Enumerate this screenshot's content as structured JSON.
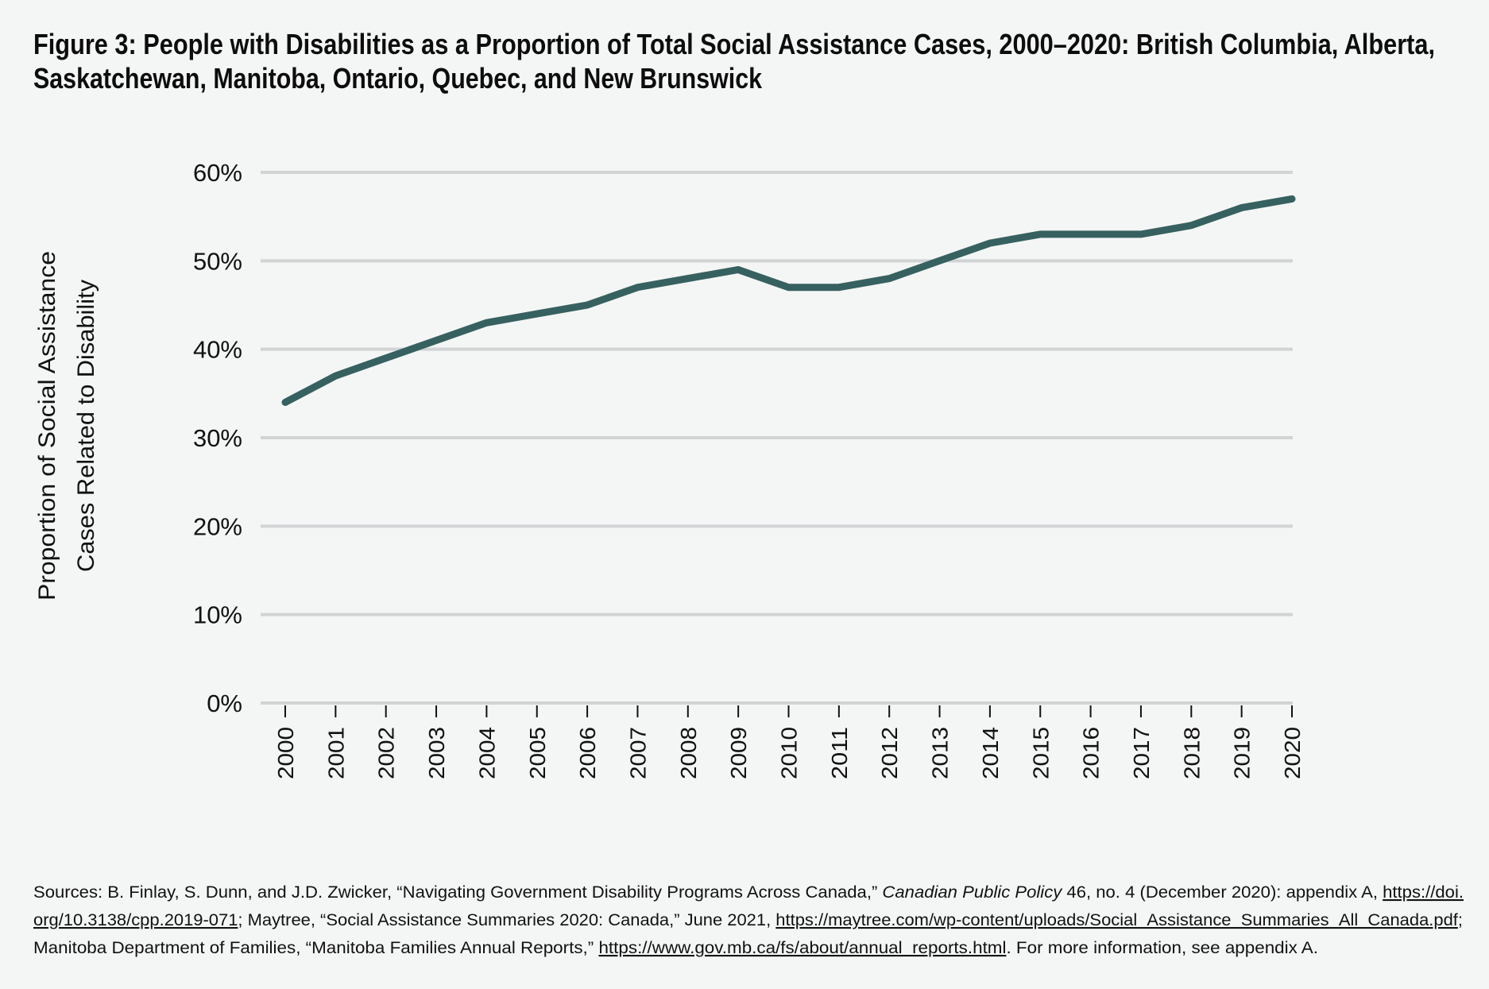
{
  "colors": {
    "background": "#f4f6f5",
    "line": "#376160",
    "grid": "#d2d3d5",
    "text": "#111111"
  },
  "chart_data": {
    "type": "line",
    "title": "Figure 3: People with Disabilities as a Proportion of Total Social Assistance Cases, 2000–2020: British Columbia, Alberta, Saskatchewan, Manitoba, Ontario, Quebec, and New Brunswick",
    "title_lines": [
      "Figure 3: People with Disabilities as a Proportion of Total Social Assistance Cases, 2000–2020: British Columbia, Alberta,",
      "Saskatchewan, Manitoba, Ontario, Quebec, and New Brunswick"
    ],
    "xlabel": "",
    "ylabel": "Proportion of Social Assistance Cases Related to Disability",
    "ylabel_lines": [
      "Proportion of Social Assistance",
      "Cases Related to Disability"
    ],
    "ylim": [
      0,
      60
    ],
    "yticks": [
      0,
      10,
      20,
      30,
      40,
      50,
      60
    ],
    "ytick_labels": [
      "0%",
      "10%",
      "20%",
      "30%",
      "40%",
      "50%",
      "60%"
    ],
    "grid": true,
    "legend": "none",
    "x": [
      "2000",
      "2001",
      "2002",
      "2003",
      "2004",
      "2005",
      "2006",
      "2007",
      "2008",
      "2009",
      "2010",
      "2011",
      "2012",
      "2013",
      "2014",
      "2015",
      "2016",
      "2017",
      "2018",
      "2019",
      "2020"
    ],
    "series": [
      {
        "name": "People with disabilities (% of social assistance cases)",
        "values": [
          34,
          37,
          39,
          41,
          43,
          44,
          45,
          47,
          48,
          49,
          47,
          47,
          48,
          50,
          52,
          53,
          53,
          53,
          54,
          56,
          57
        ]
      }
    ]
  },
  "sources": {
    "lines": [
      [
        {
          "t": "Sources: B. Finlay, S. Dunn, and J.D. Zwicker, “Navigating Government Disability Programs Across Canada,” ",
          "s": ""
        },
        {
          "t": "Canadian Public Policy",
          "s": "it"
        },
        {
          "t": " 46, no. 4 (December 2020): appendix A, ",
          "s": ""
        },
        {
          "t": "https://doi.",
          "s": "ul"
        }
      ],
      [
        {
          "t": "org/10.3138/cpp.2019-071",
          "s": "ul"
        },
        {
          "t": "; Maytree, “Social Assistance Summaries 2020: Canada,” June 2021, ",
          "s": ""
        },
        {
          "t": "https://maytree.com/wp-content/uploads/Social_Assistance_Summaries_All_Canada.pdf",
          "s": "ul"
        },
        {
          "t": ";",
          "s": ""
        }
      ],
      [
        {
          "t": "Manitoba Department of Families, “Manitoba Families Annual Reports,” ",
          "s": ""
        },
        {
          "t": "https://www.gov.mb.ca/fs/about/annual_reports.html",
          "s": "ul"
        },
        {
          "t": ". For more information, see appendix A.",
          "s": ""
        }
      ]
    ]
  }
}
